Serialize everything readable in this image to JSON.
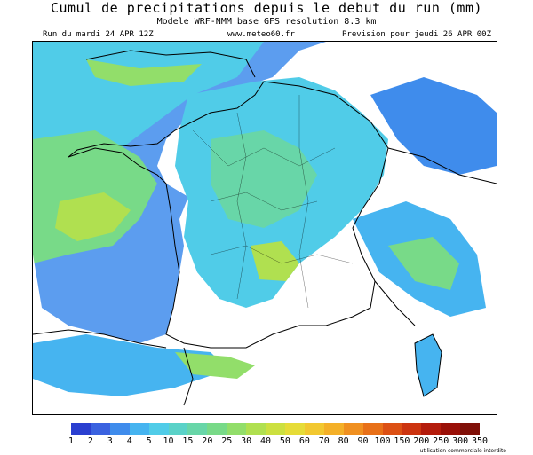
{
  "header": {
    "title": "Cumul de precipitations depuis le debut du run (mm)",
    "subtitle": "Modele WRF-NMM base GFS resolution 8.3 km",
    "run_label": "Run du mardi 24 APR 12Z",
    "site": "www.meteo60.fr",
    "forecast_label": "Prevision pour jeudi 26 APR 00Z"
  },
  "legend": {
    "values": [
      "1",
      "2",
      "3",
      "4",
      "5",
      "10",
      "15",
      "20",
      "25",
      "30",
      "40",
      "50",
      "60",
      "70",
      "80",
      "90",
      "100",
      "150",
      "200",
      "250",
      "300",
      "350"
    ],
    "colors": [
      "#2a3fd0",
      "#3a62e0",
      "#3f8cec",
      "#46b4f0",
      "#50cce8",
      "#5ad2c8",
      "#68d6a8",
      "#78da88",
      "#92de6a",
      "#b0e050",
      "#cce040",
      "#e6dc38",
      "#f2c830",
      "#f4b028",
      "#f09020",
      "#e87018",
      "#dc5014",
      "#cc3410",
      "#b41c0c",
      "#9a1008",
      "#801008"
    ],
    "note": "utilisation commerciale interdite"
  },
  "map": {
    "land_color": "#ffffff",
    "border_color": "#000000"
  }
}
